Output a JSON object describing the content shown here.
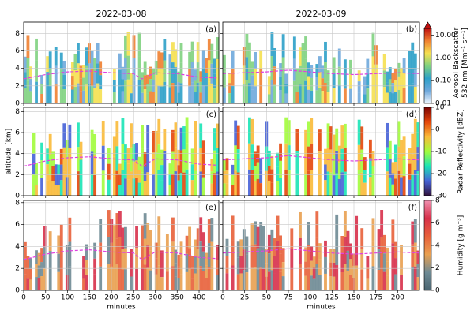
{
  "chart_data": [
    {
      "type": "heatmap",
      "title": "2022-03-08",
      "panel_label": "(a)",
      "xlim": [
        0,
        445
      ],
      "xticks": [
        0,
        50,
        100,
        150,
        200,
        250,
        300,
        350,
        400
      ],
      "ylim": [
        0,
        9.3
      ],
      "yticks": [
        0,
        2,
        4,
        6,
        8
      ],
      "grid": true,
      "series": [
        {
          "color": "#e040e0",
          "x": [
            0,
            50,
            100,
            150,
            200,
            250,
            270,
            300,
            350,
            400,
            440
          ],
          "values": [
            2.8,
            3.3,
            3.6,
            3.7,
            3.5,
            3.4,
            2.8,
            3.5,
            3.4,
            3.0,
            2.9
          ]
        }
      ]
    },
    {
      "type": "heatmap",
      "title": "2022-03-09",
      "panel_label": "(b)",
      "xlim": [
        0,
        225
      ],
      "xticks": [
        0,
        25,
        50,
        75,
        100,
        125,
        150,
        175,
        200
      ],
      "ylim": [
        0,
        9.3
      ],
      "yticks": [
        0,
        2,
        4,
        6,
        8
      ],
      "grid": true,
      "series": [
        {
          "color": "#e040e0",
          "x": [
            0,
            25,
            50,
            75,
            100,
            125,
            150,
            175,
            200,
            225
          ],
          "values": [
            3.4,
            3.5,
            3.6,
            3.8,
            3.6,
            3.4,
            3.3,
            3.4,
            3.5,
            3.4
          ]
        }
      ],
      "colorbar": {
        "label": [
          "Aerosol Backscatter",
          "532 nm [Mm⁻¹ sr⁻¹]"
        ],
        "scale": "log",
        "clim": [
          0.01,
          20
        ],
        "extend": true,
        "ticks": [
          {
            "value": 10,
            "label": "10.00"
          },
          {
            "value": 1,
            "label": "1.00"
          },
          {
            "value": 0.1,
            "label": "0.10"
          },
          {
            "value": 0.01,
            "label": "0.01"
          }
        ],
        "colors": [
          "#eef6ff",
          "#6fa8dc",
          "#2ca0c8",
          "#7fd17f",
          "#f5e050",
          "#f08030",
          "#c01010"
        ]
      }
    },
    {
      "type": "heatmap",
      "panel_label": "(c)",
      "ylabel": "altitude [km]",
      "xlim": [
        0,
        445
      ],
      "xticks": [
        0,
        50,
        100,
        150,
        200,
        250,
        300,
        350,
        400
      ],
      "ylim": [
        0,
        8.4
      ],
      "yticks": [
        0,
        2,
        4,
        6,
        8
      ],
      "grid": true,
      "series": [
        {
          "color": "#e040e0",
          "x": [
            0,
            50,
            100,
            150,
            200,
            250,
            270,
            300,
            350,
            400,
            440
          ],
          "values": [
            2.8,
            3.3,
            3.6,
            3.7,
            3.5,
            3.4,
            2.8,
            3.5,
            3.4,
            3.0,
            2.9
          ]
        }
      ]
    },
    {
      "type": "heatmap",
      "panel_label": "(d)",
      "xlim": [
        0,
        225
      ],
      "xticks": [
        0,
        25,
        50,
        75,
        100,
        125,
        150,
        175,
        200
      ],
      "ylim": [
        0,
        8.4
      ],
      "yticks": [
        0,
        2,
        4,
        6,
        8
      ],
      "grid": true,
      "series": [
        {
          "color": "#e040e0",
          "x": [
            0,
            25,
            50,
            75,
            100,
            125,
            150,
            175,
            200,
            225
          ],
          "values": [
            3.4,
            3.5,
            3.6,
            3.8,
            3.6,
            3.4,
            3.3,
            3.4,
            3.5,
            3.4
          ]
        }
      ],
      "colorbar": {
        "label": [
          "Radar Reflectivity [dBZ]"
        ],
        "scale": "linear",
        "clim": [
          -30,
          10
        ],
        "extend": false,
        "ticks": [
          10,
          0,
          -10,
          -20,
          -30
        ],
        "colors": [
          "#30123b",
          "#4662d7",
          "#1ae4b6",
          "#a2fc3c",
          "#faba39",
          "#e4460a",
          "#7a0403"
        ]
      }
    },
    {
      "type": "heatmap",
      "panel_label": "(e)",
      "xlabel": "minutes",
      "xlim": [
        0,
        445
      ],
      "xticks": [
        0,
        50,
        100,
        150,
        200,
        250,
        300,
        350,
        400
      ],
      "ylim": [
        0,
        8.2
      ],
      "yticks": [
        0,
        2,
        4,
        6,
        8
      ],
      "grid": true,
      "series": [
        {
          "color": "#e040e0",
          "x": [
            0,
            50,
            100,
            150,
            200,
            250,
            270,
            300,
            350,
            400,
            440
          ],
          "values": [
            2.8,
            3.3,
            3.6,
            3.7,
            3.5,
            3.4,
            2.8,
            3.5,
            3.4,
            3.0,
            2.9
          ]
        }
      ]
    },
    {
      "type": "heatmap",
      "panel_label": "(f)",
      "xlabel": "minutes",
      "xlim": [
        0,
        225
      ],
      "xticks": [
        0,
        25,
        50,
        75,
        100,
        125,
        150,
        175,
        200
      ],
      "ylim": [
        0,
        8.2
      ],
      "yticks": [
        0,
        2,
        4,
        6,
        8
      ],
      "grid": true,
      "series": [
        {
          "color": "#e040e0",
          "x": [
            0,
            25,
            50,
            75,
            100,
            125,
            150,
            175,
            200,
            225
          ],
          "values": [
            3.4,
            3.5,
            3.6,
            3.8,
            3.6,
            3.4,
            3.3,
            3.4,
            3.5,
            3.4
          ]
        }
      ],
      "colorbar": {
        "label": [
          "Humidity [g m⁻³]"
        ],
        "scale": "linear",
        "clim": [
          0,
          8
        ],
        "extend": false,
        "ticks": [
          0,
          2,
          4,
          6,
          8
        ],
        "colors": [
          "#4a6470",
          "#6e8a94",
          "#e9a050",
          "#e8603a",
          "#d7304a",
          "#f090b0"
        ]
      }
    }
  ]
}
